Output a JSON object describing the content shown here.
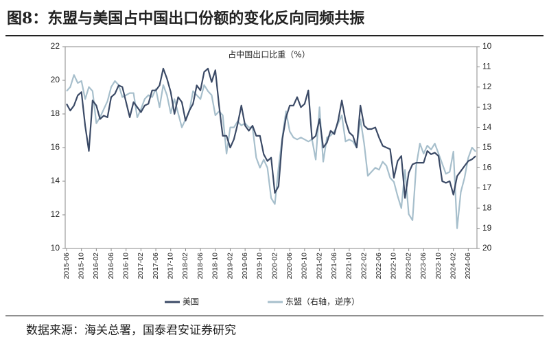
{
  "chart_data": {
    "type": "line",
    "title": "图8：东盟与美国占中国出口份额的变化反向同频共振",
    "annotation": "占中国出口比重（%）",
    "source": "数据来源：海关总署，国泰君安证券研究",
    "categories": [
      "2015-06",
      null,
      null,
      null,
      "2015-10",
      null,
      null,
      null,
      "2016-02",
      null,
      null,
      null,
      "2016-06",
      null,
      null,
      null,
      "2016-10",
      null,
      null,
      null,
      "2017-02",
      null,
      null,
      null,
      "2017-06",
      null,
      null,
      null,
      "2017-10",
      null,
      null,
      null,
      "2018-02",
      null,
      null,
      null,
      "2018-06",
      null,
      null,
      null,
      "2018-10",
      null,
      null,
      null,
      "2019-02",
      null,
      null,
      null,
      "2019-06",
      null,
      null,
      null,
      "2019-10",
      null,
      null,
      null,
      "2020-02",
      null,
      null,
      null,
      "2020-06",
      null,
      null,
      null,
      "2020-10",
      null,
      null,
      null,
      "2021-02",
      null,
      null,
      null,
      "2021-06",
      null,
      null,
      null,
      "2021-10",
      null,
      null,
      null,
      "2022-02",
      null,
      null,
      null,
      "2022-06",
      null,
      null,
      null,
      "2022-10",
      null,
      null,
      null,
      "2023-02",
      null,
      null,
      null,
      "2023-06",
      null,
      null,
      null,
      "2023-10",
      null,
      null,
      null,
      "2024-02",
      null,
      null,
      null,
      "2024-06",
      null,
      null
    ],
    "series": [
      {
        "name": "美国",
        "color": "#3b4a66",
        "values": [
          18.6,
          18.2,
          18.5,
          19.1,
          19.3,
          17.3,
          15.8,
          18.8,
          18.5,
          17.7,
          17.9,
          17.8,
          19.0,
          19.2,
          19.7,
          19.6,
          18.7,
          17.8,
          18.7,
          18.4,
          18.1,
          18.5,
          18.6,
          19.4,
          19.4,
          19.7,
          20.7,
          20.1,
          19.3,
          18.0,
          19.0,
          18.7,
          17.6,
          18.2,
          18.6,
          19.7,
          19.4,
          20.5,
          20.7,
          19.9,
          20.6,
          18.5,
          16.7,
          16.7,
          16.0,
          16.5,
          17.4,
          18.5,
          17.3,
          17.0,
          17.3,
          16.7,
          16.7,
          15.6,
          15.2,
          15.4,
          13.3,
          13.7,
          16.5,
          17.8,
          18.5,
          18.5,
          19.0,
          18.4,
          18.6,
          19.4,
          16.5,
          16.7,
          17.7,
          16.0,
          16.3,
          17.0,
          16.8,
          17.6,
          18.8,
          17.6,
          16.9,
          16.7,
          16.0,
          18.5,
          17.3,
          17.1,
          17.1,
          17.2,
          16.6,
          16.1,
          16.0,
          15.9,
          14.2,
          15.2,
          15.5,
          13.0,
          14.5,
          15.0,
          15.1,
          15.1,
          15.1,
          15.8,
          15.6,
          15.7,
          15.5,
          14.0,
          13.9,
          14.0,
          13.2,
          14.3,
          14.6,
          14.9,
          15.2,
          15.3,
          15.5
        ]
      },
      {
        "name": "东盟（右轴，逆序）",
        "color": "#a7bfcc",
        "axis": "y2",
        "values": [
          12.2,
          12.0,
          11.4,
          11.8,
          11.7,
          12.6,
          12.0,
          12.2,
          13.8,
          13.5,
          13.1,
          12.7,
          12.0,
          11.7,
          11.9,
          12.5,
          12.4,
          12.3,
          12.3,
          13.5,
          13.1,
          12.6,
          12.4,
          12.5,
          12.1,
          13.0,
          11.9,
          12.4,
          13.3,
          12.6,
          13.3,
          14.0,
          13.6,
          13.2,
          12.2,
          12.4,
          12.6,
          11.9,
          12.2,
          12.4,
          13.4,
          13.2,
          13.4,
          15.3,
          14.0,
          14.0,
          13.7,
          13.9,
          13.8,
          14.0,
          14.0,
          15.5,
          16.0,
          15.6,
          16.0,
          17.5,
          17.8,
          16.0,
          14.5,
          13.2,
          14.2,
          14.5,
          14.6,
          14.5,
          14.6,
          14.7,
          14.6,
          15.6,
          13.0,
          15.7,
          14.5,
          14.4,
          14.2,
          13.8,
          13.4,
          14.7,
          14.6,
          14.7,
          15.0,
          13.6,
          14.8,
          16.4,
          16.2,
          16.0,
          16.1,
          15.7,
          15.9,
          16.5,
          16.7,
          17.4,
          18.0,
          16.1,
          18.3,
          18.6,
          15.9,
          14.8,
          15.3,
          14.9,
          15.1,
          14.8,
          15.3,
          15.8,
          16.3,
          16.2,
          15.2,
          19.0,
          17.2,
          16.5,
          15.5,
          15.0,
          15.2
        ]
      }
    ],
    "ylim": [
      10,
      22
    ],
    "yticks": [
      10,
      12,
      14,
      16,
      18,
      20,
      22
    ],
    "y2lim": [
      10,
      20
    ],
    "y2ticks": [
      10,
      11,
      12,
      13,
      14,
      15,
      16,
      17,
      18,
      19,
      20
    ],
    "y2_inverted": true,
    "legend": "bottom"
  }
}
